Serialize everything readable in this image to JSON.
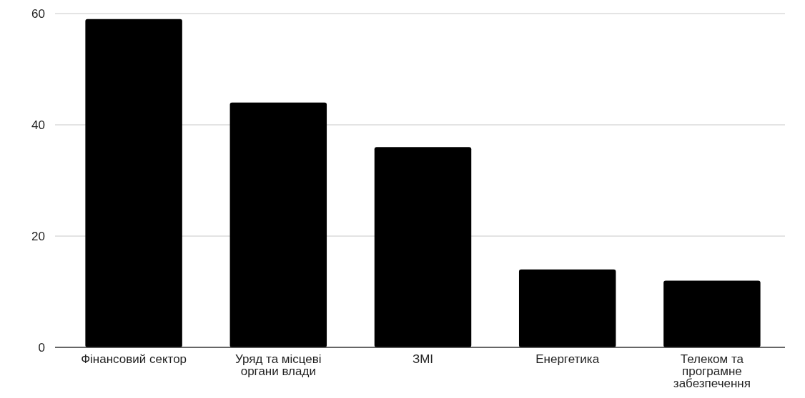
{
  "chart_data": {
    "type": "bar",
    "categories": [
      "Фінансовий сектор",
      "Уряд та місцеві органи влади",
      "ЗМІ",
      "Енергетика",
      "Телеком та програмне забезпечення"
    ],
    "values": [
      59,
      44,
      36,
      14,
      12
    ],
    "color": "#000000",
    "ylim": [
      0,
      60
    ],
    "yticks": [
      0,
      20,
      40,
      60
    ],
    "grid": "y"
  }
}
